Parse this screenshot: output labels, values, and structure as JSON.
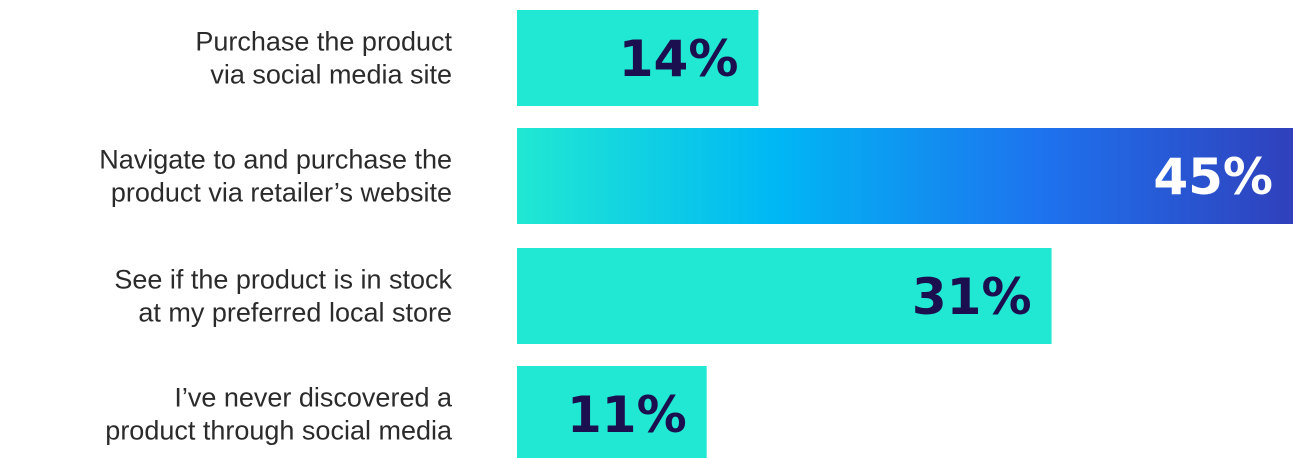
{
  "chart_data": {
    "type": "bar",
    "orientation": "horizontal",
    "categories": [
      [
        "Purchase the product",
        "via social media site"
      ],
      [
        "Navigate to and purchase the",
        "product via retailer’s website"
      ],
      [
        "See if the product is in stock",
        "at my preferred local store"
      ],
      [
        "I’ve never discovered a",
        "product through social media"
      ]
    ],
    "values": [
      14,
      45,
      31,
      11
    ],
    "value_labels": [
      "14%",
      "45%",
      "31%",
      "11%"
    ],
    "highlight_index": 1,
    "xlim": [
      0,
      45
    ],
    "title": "",
    "xlabel": "",
    "ylabel": "",
    "grid": false,
    "legend": "none",
    "colors": {
      "bar": "#20E8D2",
      "highlight_gradient": [
        "#20E8D2",
        "#00B8F4",
        "#1E72EE",
        "#3040BC"
      ],
      "label_dark": "#1C0F4F",
      "label_light": "#ffffff",
      "category_text": "#2b2b2b"
    }
  }
}
